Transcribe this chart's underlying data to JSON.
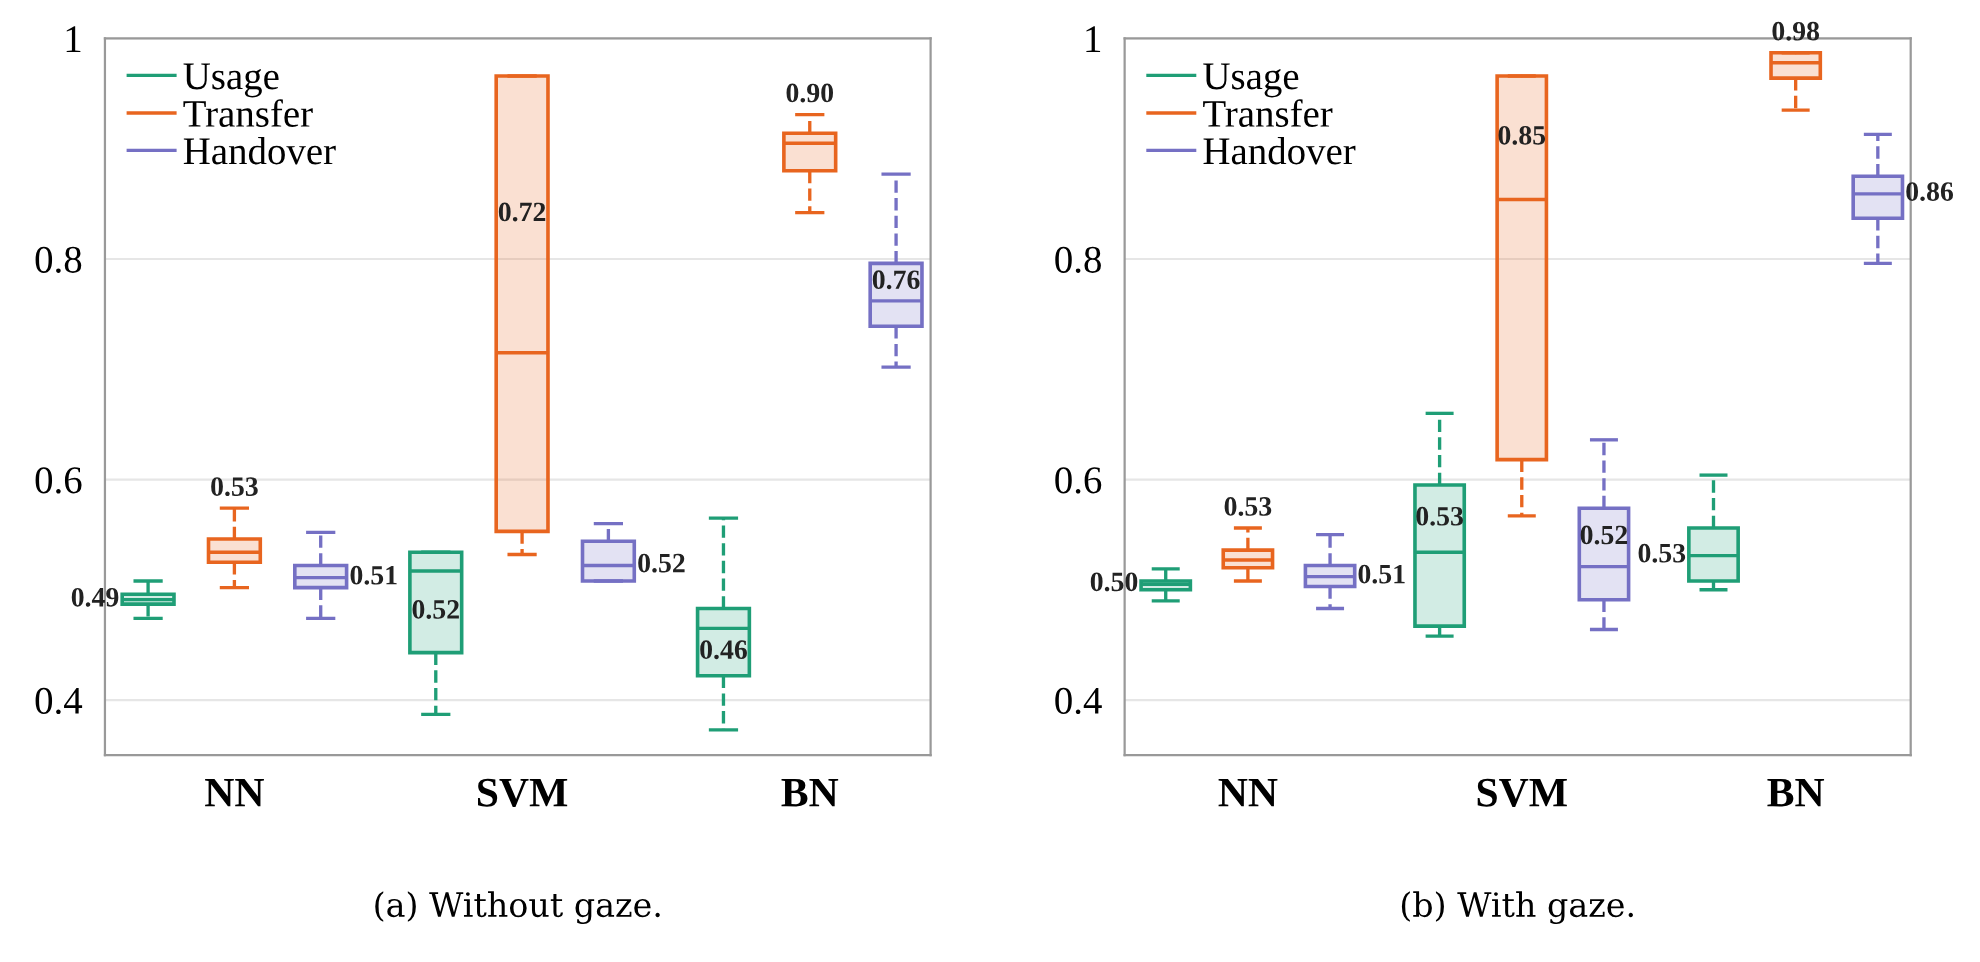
{
  "chart_data": [
    {
      "type": "box",
      "categories": [
        "NN",
        "SVM",
        "BN"
      ],
      "ylim": [
        0.35,
        1.0
      ],
      "yticks": [
        0.4,
        0.6,
        0.8,
        1
      ],
      "grid": "y",
      "legend": "top left",
      "line_style": "dashed",
      "annotations": [
        "(a) Without gaze."
      ],
      "series": [
        {
          "name": "Usage",
          "color": "#1f9e76",
          "value_labels": [
            "0.49",
            "0.52",
            "0.46"
          ],
          "boxes": [
            {
              "low": 0.474,
              "q1": 0.487,
              "median": 0.491,
              "q3": 0.496,
              "high": 0.508
            },
            {
              "low": 0.387,
              "q1": 0.443,
              "median": 0.517,
              "q3": 0.534,
              "high": 0.534
            },
            {
              "low": 0.373,
              "q1": 0.422,
              "median": 0.465,
              "q3": 0.483,
              "high": 0.565
            }
          ]
        },
        {
          "name": "Transfer",
          "color": "#e8651f",
          "value_labels": [
            "0.53",
            "0.72",
            "0.90"
          ],
          "boxes": [
            {
              "low": 0.502,
              "q1": 0.525,
              "median": 0.534,
              "q3": 0.546,
              "high": 0.574
            },
            {
              "low": 0.532,
              "q1": 0.553,
              "median": 0.715,
              "q3": 0.966,
              "high": 0.966
            },
            {
              "low": 0.842,
              "q1": 0.88,
              "median": 0.905,
              "q3": 0.914,
              "high": 0.931
            }
          ]
        },
        {
          "name": "Handover",
          "color": "#7570c4",
          "value_labels": [
            "0.51",
            "0.52",
            "0.76"
          ],
          "boxes": [
            {
              "low": 0.474,
              "q1": 0.502,
              "median": 0.511,
              "q3": 0.522,
              "high": 0.552
            },
            {
              "low": 0.508,
              "q1": 0.508,
              "median": 0.522,
              "q3": 0.544,
              "high": 0.56
            },
            {
              "low": 0.702,
              "q1": 0.739,
              "median": 0.762,
              "q3": 0.796,
              "high": 0.877
            }
          ]
        }
      ]
    },
    {
      "type": "box",
      "categories": [
        "NN",
        "SVM",
        "BN"
      ],
      "ylim": [
        0.35,
        1.0
      ],
      "yticks": [
        0.4,
        0.6,
        0.8,
        1
      ],
      "grid": "y",
      "legend": "top left",
      "line_style": "dashed",
      "annotations": [
        "(b) With gaze."
      ],
      "series": [
        {
          "name": "Usage",
          "color": "#1f9e76",
          "value_labels": [
            "0.50",
            "0.53",
            "0.53"
          ],
          "boxes": [
            {
              "low": 0.49,
              "q1": 0.5,
              "median": 0.505,
              "q3": 0.508,
              "high": 0.519
            },
            {
              "low": 0.458,
              "q1": 0.467,
              "median": 0.534,
              "q3": 0.595,
              "high": 0.66
            },
            {
              "low": 0.5,
              "q1": 0.508,
              "median": 0.531,
              "q3": 0.556,
              "high": 0.604
            }
          ]
        },
        {
          "name": "Transfer",
          "color": "#e8651f",
          "value_labels": [
            "0.53",
            "0.85",
            "0.98"
          ],
          "boxes": [
            {
              "low": 0.508,
              "q1": 0.52,
              "median": 0.527,
              "q3": 0.536,
              "high": 0.556
            },
            {
              "low": 0.567,
              "q1": 0.618,
              "median": 0.854,
              "q3": 0.966,
              "high": 0.966
            },
            {
              "low": 0.935,
              "q1": 0.964,
              "median": 0.978,
              "q3": 0.987,
              "high": 0.987
            }
          ]
        },
        {
          "name": "Handover",
          "color": "#7570c4",
          "value_labels": [
            "0.51",
            "0.52",
            "0.86"
          ],
          "boxes": [
            {
              "low": 0.483,
              "q1": 0.503,
              "median": 0.512,
              "q3": 0.522,
              "high": 0.55
            },
            {
              "low": 0.464,
              "q1": 0.491,
              "median": 0.521,
              "q3": 0.574,
              "high": 0.636
            },
            {
              "low": 0.796,
              "q1": 0.837,
              "median": 0.859,
              "q3": 0.875,
              "high": 0.913
            }
          ]
        }
      ]
    }
  ]
}
